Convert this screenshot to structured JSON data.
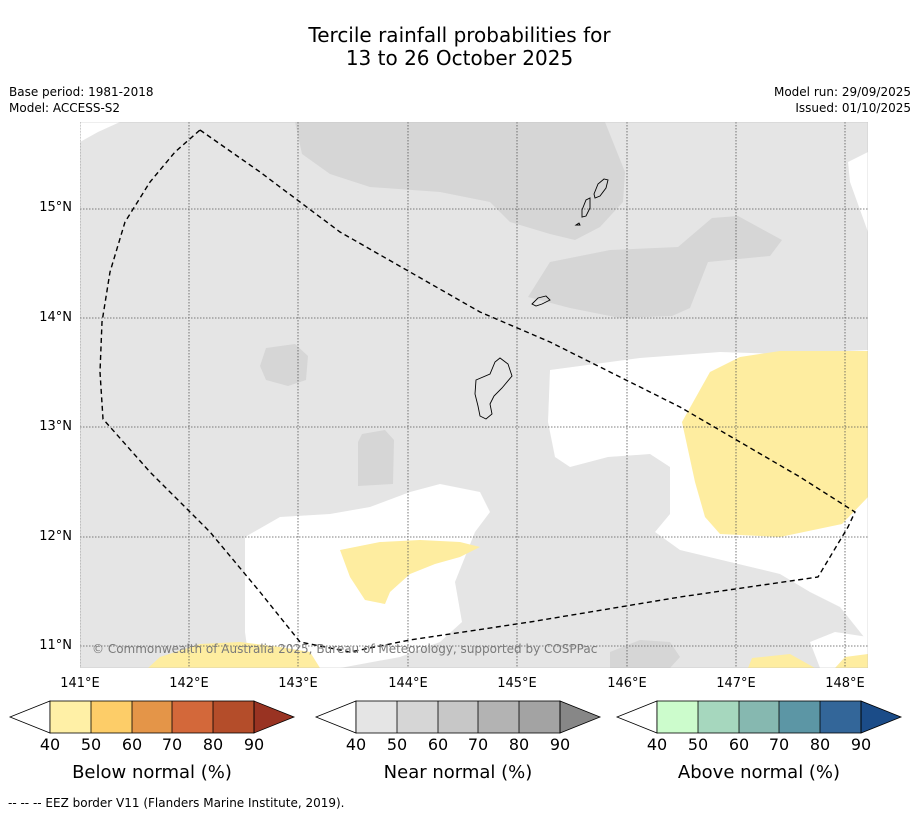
{
  "title": {
    "line1": "Tercile rainfall probabilities for",
    "line2": "13 to 26 October 2025"
  },
  "meta": {
    "base_period": "Base period: 1981-2018",
    "model": "Model: ACCESS-S2",
    "model_run": "Model run: 29/09/2025",
    "issued": "Issued: 01/10/2025"
  },
  "map": {
    "latitudes": [
      "15°N",
      "14°N",
      "13°N",
      "12°N",
      "11°N"
    ],
    "longitudes": [
      "141°E",
      "142°E",
      "143°E",
      "144°E",
      "145°E",
      "146°E",
      "147°E",
      "148°E"
    ],
    "copyright": "© Commonwealth of Australia 2025, Bureau of Meteorology, supported by COSPPac",
    "colors": {
      "near_40": "#e5e5e5",
      "near_50": "#d6d6d6",
      "below_40": "#feeda0",
      "ocean_white": "#ffffff",
      "land_outline": "#000000"
    }
  },
  "colorbars": [
    {
      "name": "below",
      "title": "Below normal (%)",
      "ticks": [
        "40",
        "50",
        "60",
        "70",
        "80",
        "90"
      ],
      "colors": [
        "#fff0a6",
        "#fdcd68",
        "#e49548",
        "#d3683a",
        "#b44d2a",
        "#993322"
      ]
    },
    {
      "name": "near",
      "title": "Near normal (%)",
      "ticks": [
        "40",
        "50",
        "60",
        "70",
        "80",
        "90"
      ],
      "colors": [
        "#e5e5e5",
        "#d6d6d6",
        "#c7c7c7",
        "#b3b3b3",
        "#a3a3a3",
        "#878787"
      ]
    },
    {
      "name": "above",
      "title": "Above normal (%)",
      "ticks": [
        "40",
        "50",
        "60",
        "70",
        "80",
        "90"
      ],
      "colors": [
        "#ccfccc",
        "#a6d7be",
        "#86b8b0",
        "#5c96a5",
        "#336699",
        "#1b4c88"
      ]
    }
  ],
  "footnote": "--  --  -- EEZ border V11 (Flanders Marine Institute, 2019)."
}
